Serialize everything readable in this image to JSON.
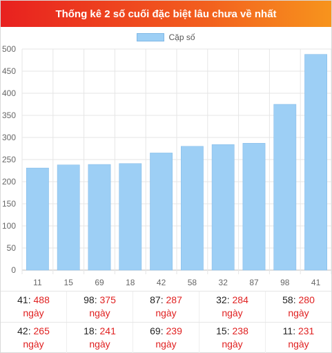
{
  "header": {
    "title": "Thống kê 2 số cuối đặc biệt lâu chưa về nhất"
  },
  "colors": {
    "bar": "#9dcff5",
    "bar_border": "#7fb8e6",
    "days_text": "#e02020",
    "header_start": "#e8211f",
    "header_end": "#f7941d"
  },
  "chart_data": {
    "type": "bar",
    "categories": [
      "11",
      "15",
      "69",
      "18",
      "42",
      "58",
      "32",
      "87",
      "98",
      "41"
    ],
    "series": [
      {
        "name": "Cặp số",
        "values": [
          231,
          238,
          239,
          241,
          265,
          280,
          284,
          287,
          375,
          488
        ]
      }
    ],
    "ylim": [
      0,
      500
    ],
    "yticks": [
      0,
      50,
      100,
      150,
      200,
      250,
      300,
      350,
      400,
      450,
      500
    ],
    "grid": true,
    "legend": "top-center"
  },
  "table": {
    "unit": "ngày",
    "rows": [
      [
        {
          "num": "41",
          "days": "488"
        },
        {
          "num": "98",
          "days": "375"
        },
        {
          "num": "87",
          "days": "287"
        },
        {
          "num": "32",
          "days": "284"
        },
        {
          "num": "58",
          "days": "280"
        }
      ],
      [
        {
          "num": "42",
          "days": "265"
        },
        {
          "num": "18",
          "days": "241"
        },
        {
          "num": "69",
          "days": "239"
        },
        {
          "num": "15",
          "days": "238"
        },
        {
          "num": "11",
          "days": "231"
        }
      ]
    ]
  }
}
